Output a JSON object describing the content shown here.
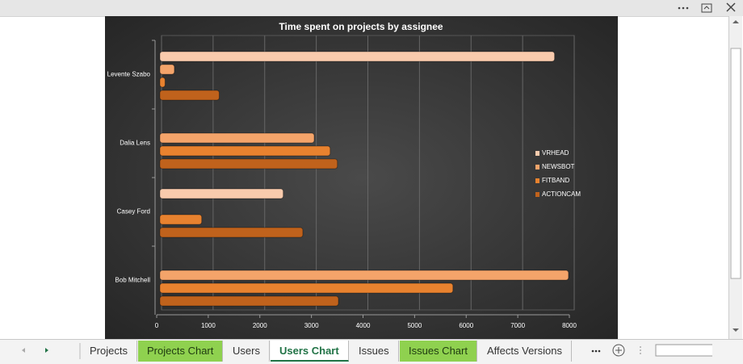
{
  "chart_data": {
    "type": "bar",
    "orientation": "horizontal",
    "title": "Time spent on projects by assignee",
    "categories": [
      "Levente Szabo",
      "Dalia Lens",
      "Casey Ford",
      "Bob Mitchell"
    ],
    "series": [
      {
        "name": "VRHEAD",
        "color": "#f9cbad",
        "values": [
          7650,
          null,
          2390,
          null
        ]
      },
      {
        "name": "NEWSBOT",
        "color": "#f4a46a",
        "values": [
          280,
          2990,
          null,
          7920
        ]
      },
      {
        "name": "FITBAND",
        "color": "#e8822f",
        "values": [
          100,
          3300,
          810,
          5680
        ]
      },
      {
        "name": "ACTIONCAM",
        "color": "#c0621c",
        "values": [
          1150,
          3440,
          2770,
          3460
        ]
      }
    ],
    "xlim": [
      0,
      8000
    ],
    "xticks": [
      0,
      1000,
      2000,
      3000,
      4000,
      5000,
      6000,
      7000,
      8000
    ],
    "grid": true,
    "legend": "right"
  },
  "tabs": [
    {
      "label": "Projects",
      "style": "plain"
    },
    {
      "label": "Projects Chart",
      "style": "green"
    },
    {
      "label": "Users",
      "style": "plain"
    },
    {
      "label": "Users Chart",
      "style": "active"
    },
    {
      "label": "Issues",
      "style": "plain"
    },
    {
      "label": "Issues Chart",
      "style": "green"
    },
    {
      "label": "Affects Versions",
      "style": "plain"
    }
  ]
}
